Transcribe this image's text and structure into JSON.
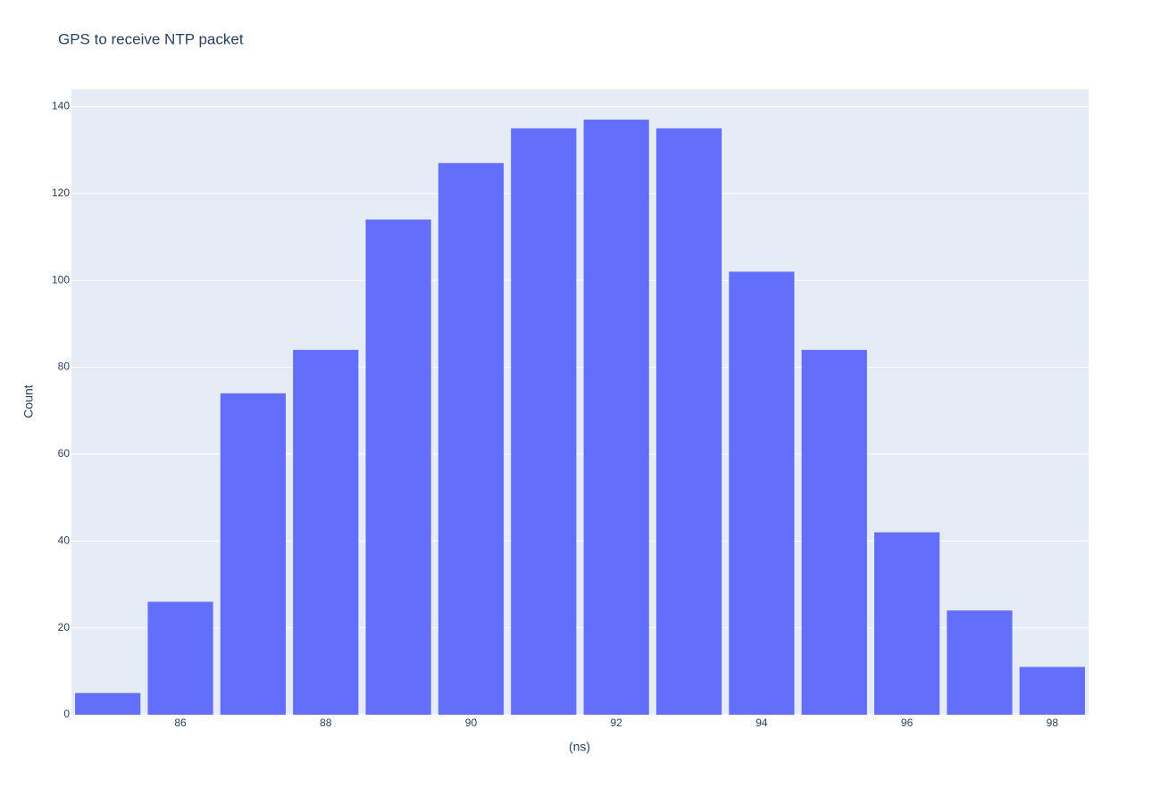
{
  "chart_data": {
    "type": "bar",
    "title": "GPS to receive NTP packet",
    "x_label": "(ns)",
    "y_label": "Count",
    "x": [
      85,
      86,
      87,
      88,
      89,
      90,
      91,
      92,
      93,
      94,
      95,
      96,
      97,
      98
    ],
    "values": [
      5,
      26,
      74,
      84,
      114,
      127,
      135,
      137,
      135,
      102,
      84,
      42,
      24,
      11
    ],
    "color": "#636efa",
    "xlim": [
      84.5,
      98.5
    ],
    "xticks": [
      86,
      88,
      90,
      92,
      94,
      96,
      98
    ],
    "ylim": [
      0,
      144
    ],
    "yticks": [
      0,
      20,
      40,
      60,
      80,
      100,
      120,
      140
    ],
    "grid": true
  }
}
